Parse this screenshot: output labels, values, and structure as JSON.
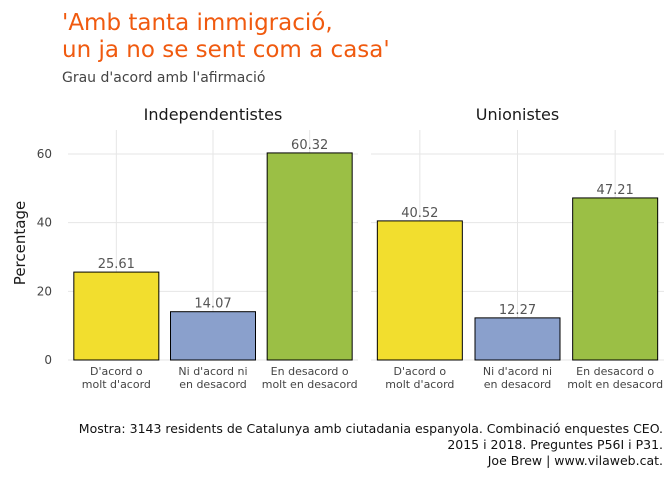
{
  "chart_data": {
    "type": "bar",
    "title_lines": [
      "'Amb tanta immigració,",
      "un ja no se sent com a casa'"
    ],
    "subtitle": "Grau d'acord amb l'afirmació",
    "ylabel": "Percentage",
    "xlabel": "",
    "ylim": [
      0,
      67
    ],
    "yticks": [
      0,
      20,
      40,
      60
    ],
    "grid": true,
    "categories": [
      [
        "D'acord o",
        "molt d'acord"
      ],
      [
        "Ni d'acord ni",
        "en desacord"
      ],
      [
        "En desacord o",
        "molt en desacord"
      ]
    ],
    "colors": [
      "#f2de2e",
      "#8aa0cc",
      "#9bbf45"
    ],
    "facets": [
      {
        "name": "Independentistes",
        "values": [
          25.61,
          14.07,
          60.32
        ]
      },
      {
        "name": "Unionistes",
        "values": [
          40.52,
          12.27,
          47.21
        ]
      }
    ],
    "value_labels": [
      [
        "25.61",
        "14.07",
        "60.32"
      ],
      [
        "40.52",
        "12.27",
        "47.21"
      ]
    ]
  },
  "caption_lines": [
    "Mostra: 3143 residents de Catalunya amb ciutadania espanyola. Combinació enquestes CEO.",
    "2015 i 2018. Preguntes P56I i P31.",
    "Joe Brew | www.vilaweb.cat."
  ]
}
